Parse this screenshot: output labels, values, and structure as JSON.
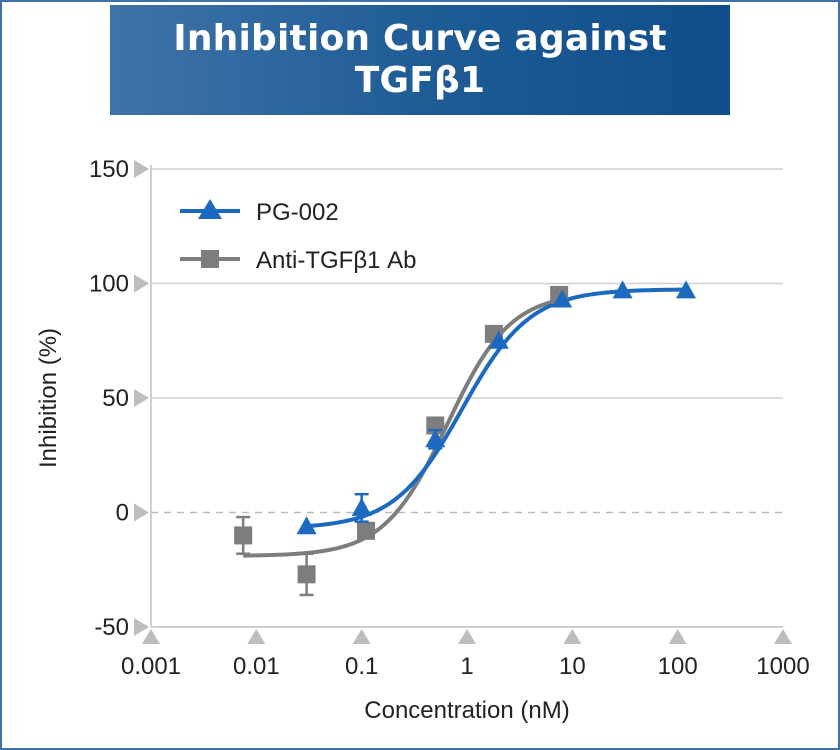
{
  "chart_data": {
    "type": "scatter",
    "title_lines": [
      "Inhibition Curve against",
      "TGFβ1"
    ],
    "xlabel": "Concentration (nM)",
    "ylabel": "Inhibition (%)",
    "x_scale": "log",
    "xlim": [
      0.001,
      1000
    ],
    "ylim": [
      -50,
      150
    ],
    "x_ticks": [
      0.001,
      0.01,
      0.1,
      1,
      10,
      100,
      1000
    ],
    "x_tick_labels": [
      "0.001",
      "0.01",
      "0.1",
      "1",
      "10",
      "100",
      "1000"
    ],
    "y_ticks": [
      -50,
      0,
      50,
      100,
      150
    ],
    "y_tick_labels": [
      "-50",
      "0",
      "50",
      "100",
      "150"
    ],
    "grid": "horizontal",
    "zero_line": "dashed",
    "legend_position": "top-left",
    "series": [
      {
        "name": "PG-002",
        "marker": "triangle",
        "color": "#1b6ac0",
        "points": [
          {
            "x": 0.03,
            "y": -6
          },
          {
            "x": 0.1,
            "y": 2,
            "err": 6
          },
          {
            "x": 0.5,
            "y": 32,
            "err": 4
          },
          {
            "x": 2,
            "y": 75
          },
          {
            "x": 8,
            "y": 93
          },
          {
            "x": 30,
            "y": 97
          },
          {
            "x": 120,
            "y": 97
          }
        ],
        "fit": {
          "bottom": -7,
          "top": 97.5,
          "ic50": 0.9,
          "hill": 1.35
        }
      },
      {
        "name": "Anti-TGFβ1 Ab",
        "marker": "square",
        "color": "#7d7d7d",
        "points": [
          {
            "x": 0.0075,
            "y": -10,
            "err": 8
          },
          {
            "x": 0.03,
            "y": -27,
            "err": 9
          },
          {
            "x": 0.11,
            "y": -8
          },
          {
            "x": 0.5,
            "y": 38,
            "err": 2
          },
          {
            "x": 1.8,
            "y": 78
          },
          {
            "x": 7.5,
            "y": 95
          }
        ],
        "fit": {
          "bottom": -19,
          "top": 96,
          "ic50": 0.65,
          "hill": 1.45
        }
      }
    ]
  }
}
